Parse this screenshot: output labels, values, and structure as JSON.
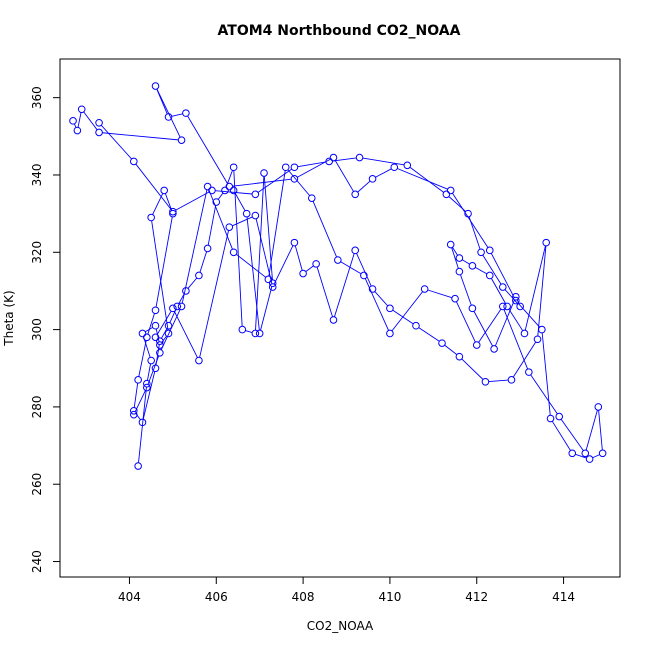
{
  "chart_data": {
    "type": "line",
    "title": "ATOM4 Northbound CO2_NOAA",
    "xlabel": "CO2_NOAA",
    "ylabel": "Theta (K)",
    "xlim": [
      402.4,
      415.3
    ],
    "ylim": [
      236,
      370
    ],
    "x_ticks": [
      404,
      406,
      408,
      410,
      412,
      414
    ],
    "y_ticks": [
      240,
      260,
      280,
      300,
      320,
      340,
      360
    ],
    "grid": false,
    "legend": "none",
    "series_color": "#0000ff",
    "markers": "open-circle",
    "series": [
      {
        "x": [
          404.2,
          404.4,
          404.5,
          404.3,
          404.6,
          404.7,
          404.9,
          404.5,
          404.8,
          405.0,
          404.6,
          404.4,
          404.2,
          404.1,
          404.3,
          404.6,
          404.7,
          404.9,
          405.1,
          405.3,
          405.6,
          405.8,
          406.0,
          406.2,
          406.4,
          406.6,
          406.9,
          407.1,
          407.3,
          407.0,
          406.7,
          406.4
        ],
        "y": [
          264.7,
          286,
          292,
          299,
          301,
          296,
          299,
          329,
          336,
          330,
          305,
          298,
          287,
          279,
          276,
          290,
          297,
          301,
          306,
          310,
          314,
          321,
          333,
          336,
          342,
          300,
          299,
          340.5,
          312,
          299,
          330,
          336
        ]
      },
      {
        "x": [
          402.7,
          402.8,
          402.9,
          403.3,
          405.2,
          404.6,
          404.9,
          405.3,
          406.3,
          407.8,
          408.7,
          409.2,
          409.6,
          410.1,
          411.4,
          412.3,
          412.9,
          413.5,
          413.7,
          414.2,
          414.6,
          414.9,
          414.8,
          414.5,
          413.9,
          413.2,
          412.6,
          412.0,
          411.5,
          410.8,
          410.0,
          409.4,
          408.8,
          408.2,
          407.6,
          407.2,
          406.4,
          405.8,
          405.2,
          404.7,
          404.4,
          404.1
        ],
        "y": [
          354,
          351.5,
          357,
          351,
          349,
          363,
          355,
          356,
          337,
          339,
          344.5,
          335,
          339,
          342,
          336,
          320.5,
          307.5,
          300,
          277,
          268,
          266.5,
          268,
          280,
          268,
          277.5,
          289,
          306,
          296,
          308,
          310.5,
          299,
          314,
          318,
          334,
          342,
          313,
          320,
          337,
          306,
          294,
          285,
          278
        ]
      },
      {
        "x": [
          403.3,
          404.1,
          405.0,
          405.9,
          406.9,
          407.8,
          408.6,
          409.3,
          410.4,
          411.3,
          411.8,
          412.1,
          412.6,
          413.0,
          412.9,
          412.4,
          411.9,
          411.6,
          411.4,
          411.6,
          411.9,
          412.3,
          412.7,
          413.1,
          413.6,
          413.4,
          412.8,
          412.2,
          411.6,
          411.2,
          410.6,
          410.0,
          409.6,
          409.2,
          408.7,
          408.3,
          408.0,
          407.8,
          407.3,
          406.9,
          406.3,
          405.6,
          405.0,
          404.6
        ],
        "y": [
          353.5,
          343.5,
          330.5,
          336,
          335,
          342,
          343.5,
          344.5,
          342.5,
          335,
          330,
          320,
          311,
          306,
          308.5,
          295,
          305.5,
          315,
          322,
          318.5,
          316.5,
          314,
          306,
          299,
          322.5,
          297.5,
          287,
          286.5,
          293,
          296.5,
          301,
          305.5,
          310.5,
          320.5,
          302.5,
          317,
          314.5,
          322.5,
          311,
          329.5,
          326.5,
          292,
          305.5,
          298
        ]
      }
    ]
  }
}
